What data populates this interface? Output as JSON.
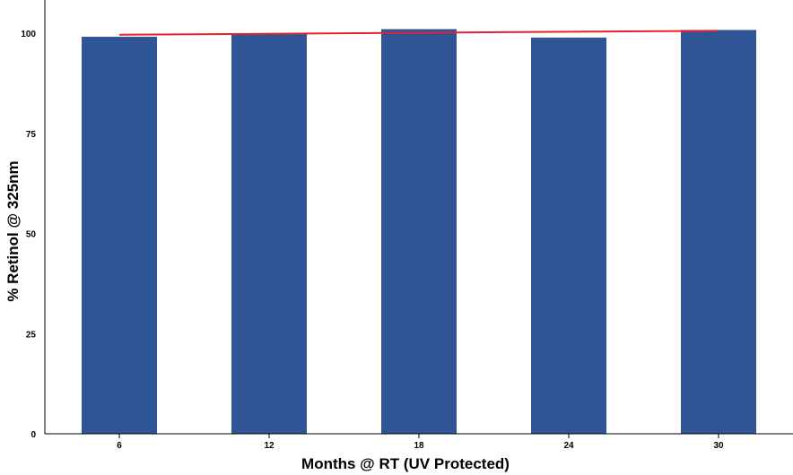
{
  "chart_data": {
    "type": "bar",
    "categories": [
      "6",
      "12",
      "18",
      "24",
      "30"
    ],
    "values": [
      99.1,
      99.8,
      101.0,
      98.9,
      100.8
    ],
    "trendline": {
      "type": "linear",
      "start": 99.6,
      "end": 100.6,
      "color": "#e8202a"
    },
    "xlabel": "Months @ RT (UV Protected)",
    "ylabel": "% Retinol @ 325nm",
    "ylim": [
      0,
      100
    ],
    "yticks": [
      "0",
      "25",
      "50",
      "75",
      "100"
    ],
    "bar_color": "#2f5597",
    "grid": false,
    "legend": "none"
  }
}
